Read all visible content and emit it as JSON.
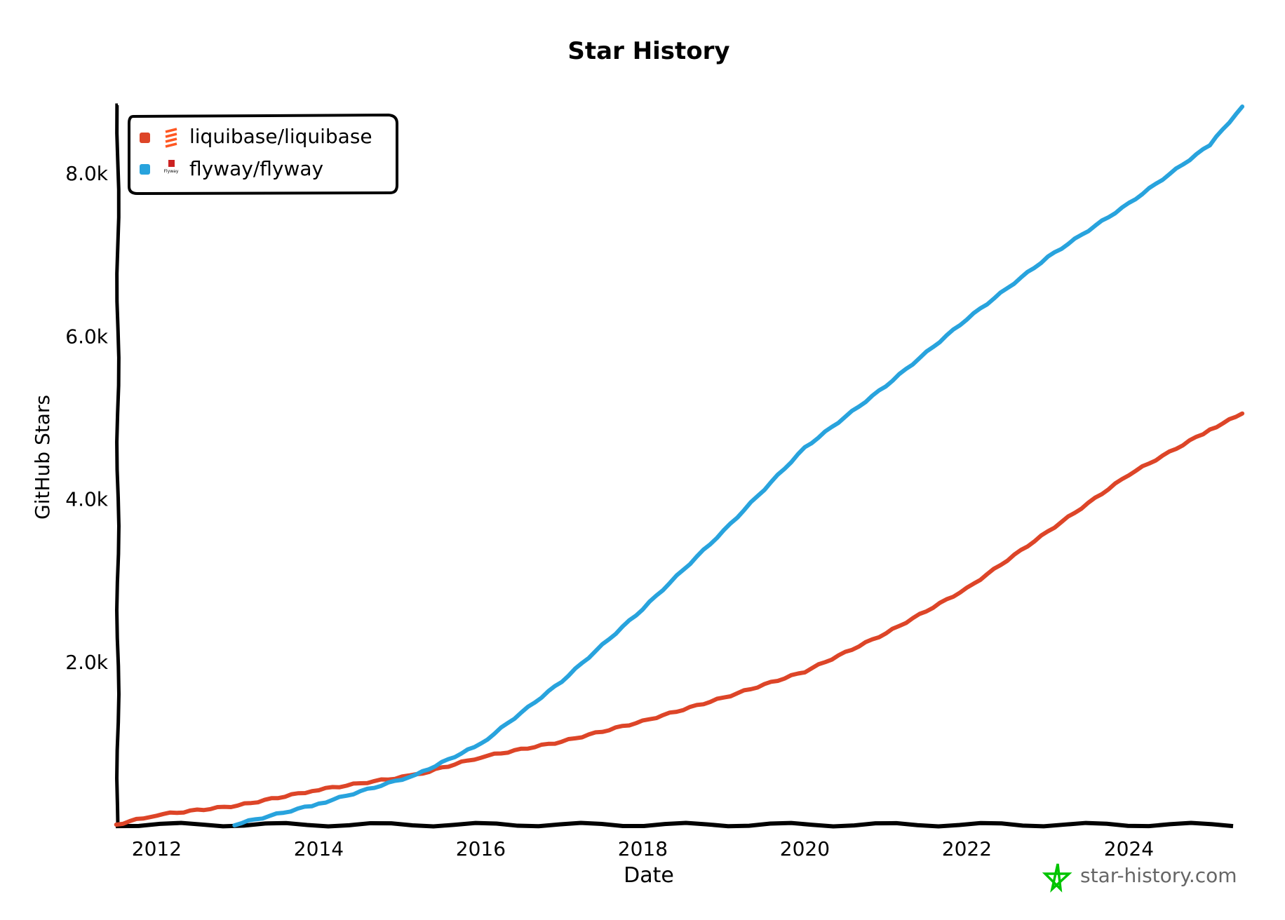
{
  "chart_data": {
    "type": "line",
    "title": "Star History",
    "xlabel": "Date",
    "ylabel": "GitHub Stars",
    "xlim": [
      2011.5,
      2025.4
    ],
    "ylim": [
      0,
      8800
    ],
    "x_ticks": [
      "2012",
      "2014",
      "2016",
      "2018",
      "2020",
      "2022",
      "2024"
    ],
    "y_ticks": [
      "2.0k",
      "4.0k",
      "6.0k",
      "8.0k"
    ],
    "grid": false,
    "legend_placement": "top-left",
    "series": [
      {
        "name": "liquibase/liquibase",
        "color": "#dd4528",
        "icon": "liquibase-logo-icon",
        "points": [
          [
            2011.5,
            0
          ],
          [
            2012,
            120
          ],
          [
            2013,
            235
          ],
          [
            2014,
            430
          ],
          [
            2015.2,
            610
          ],
          [
            2016,
            830
          ],
          [
            2017,
            1020
          ],
          [
            2018,
            1270
          ],
          [
            2019,
            1560
          ],
          [
            2020,
            1880
          ],
          [
            2021,
            2350
          ],
          [
            2022,
            2900
          ],
          [
            2023,
            3600
          ],
          [
            2024,
            4300
          ],
          [
            2025,
            4850
          ],
          [
            2025.4,
            5050
          ]
        ]
      },
      {
        "name": "flyway/flyway",
        "color": "#28a3dd",
        "icon": "flyway-logo-icon",
        "points": [
          [
            2012.96,
            0
          ],
          [
            2014,
            255
          ],
          [
            2015.2,
            610
          ],
          [
            2016,
            990
          ],
          [
            2017,
            1760
          ],
          [
            2018,
            2650
          ],
          [
            2019,
            3610
          ],
          [
            2020,
            4630
          ],
          [
            2021,
            5390
          ],
          [
            2022,
            6210
          ],
          [
            2023,
            6970
          ],
          [
            2024,
            7630
          ],
          [
            2025,
            8350
          ],
          [
            2025.4,
            8820
          ]
        ]
      }
    ]
  },
  "watermark": {
    "text": "star-history.com",
    "icon": "star-icon",
    "color": "#00c400"
  }
}
